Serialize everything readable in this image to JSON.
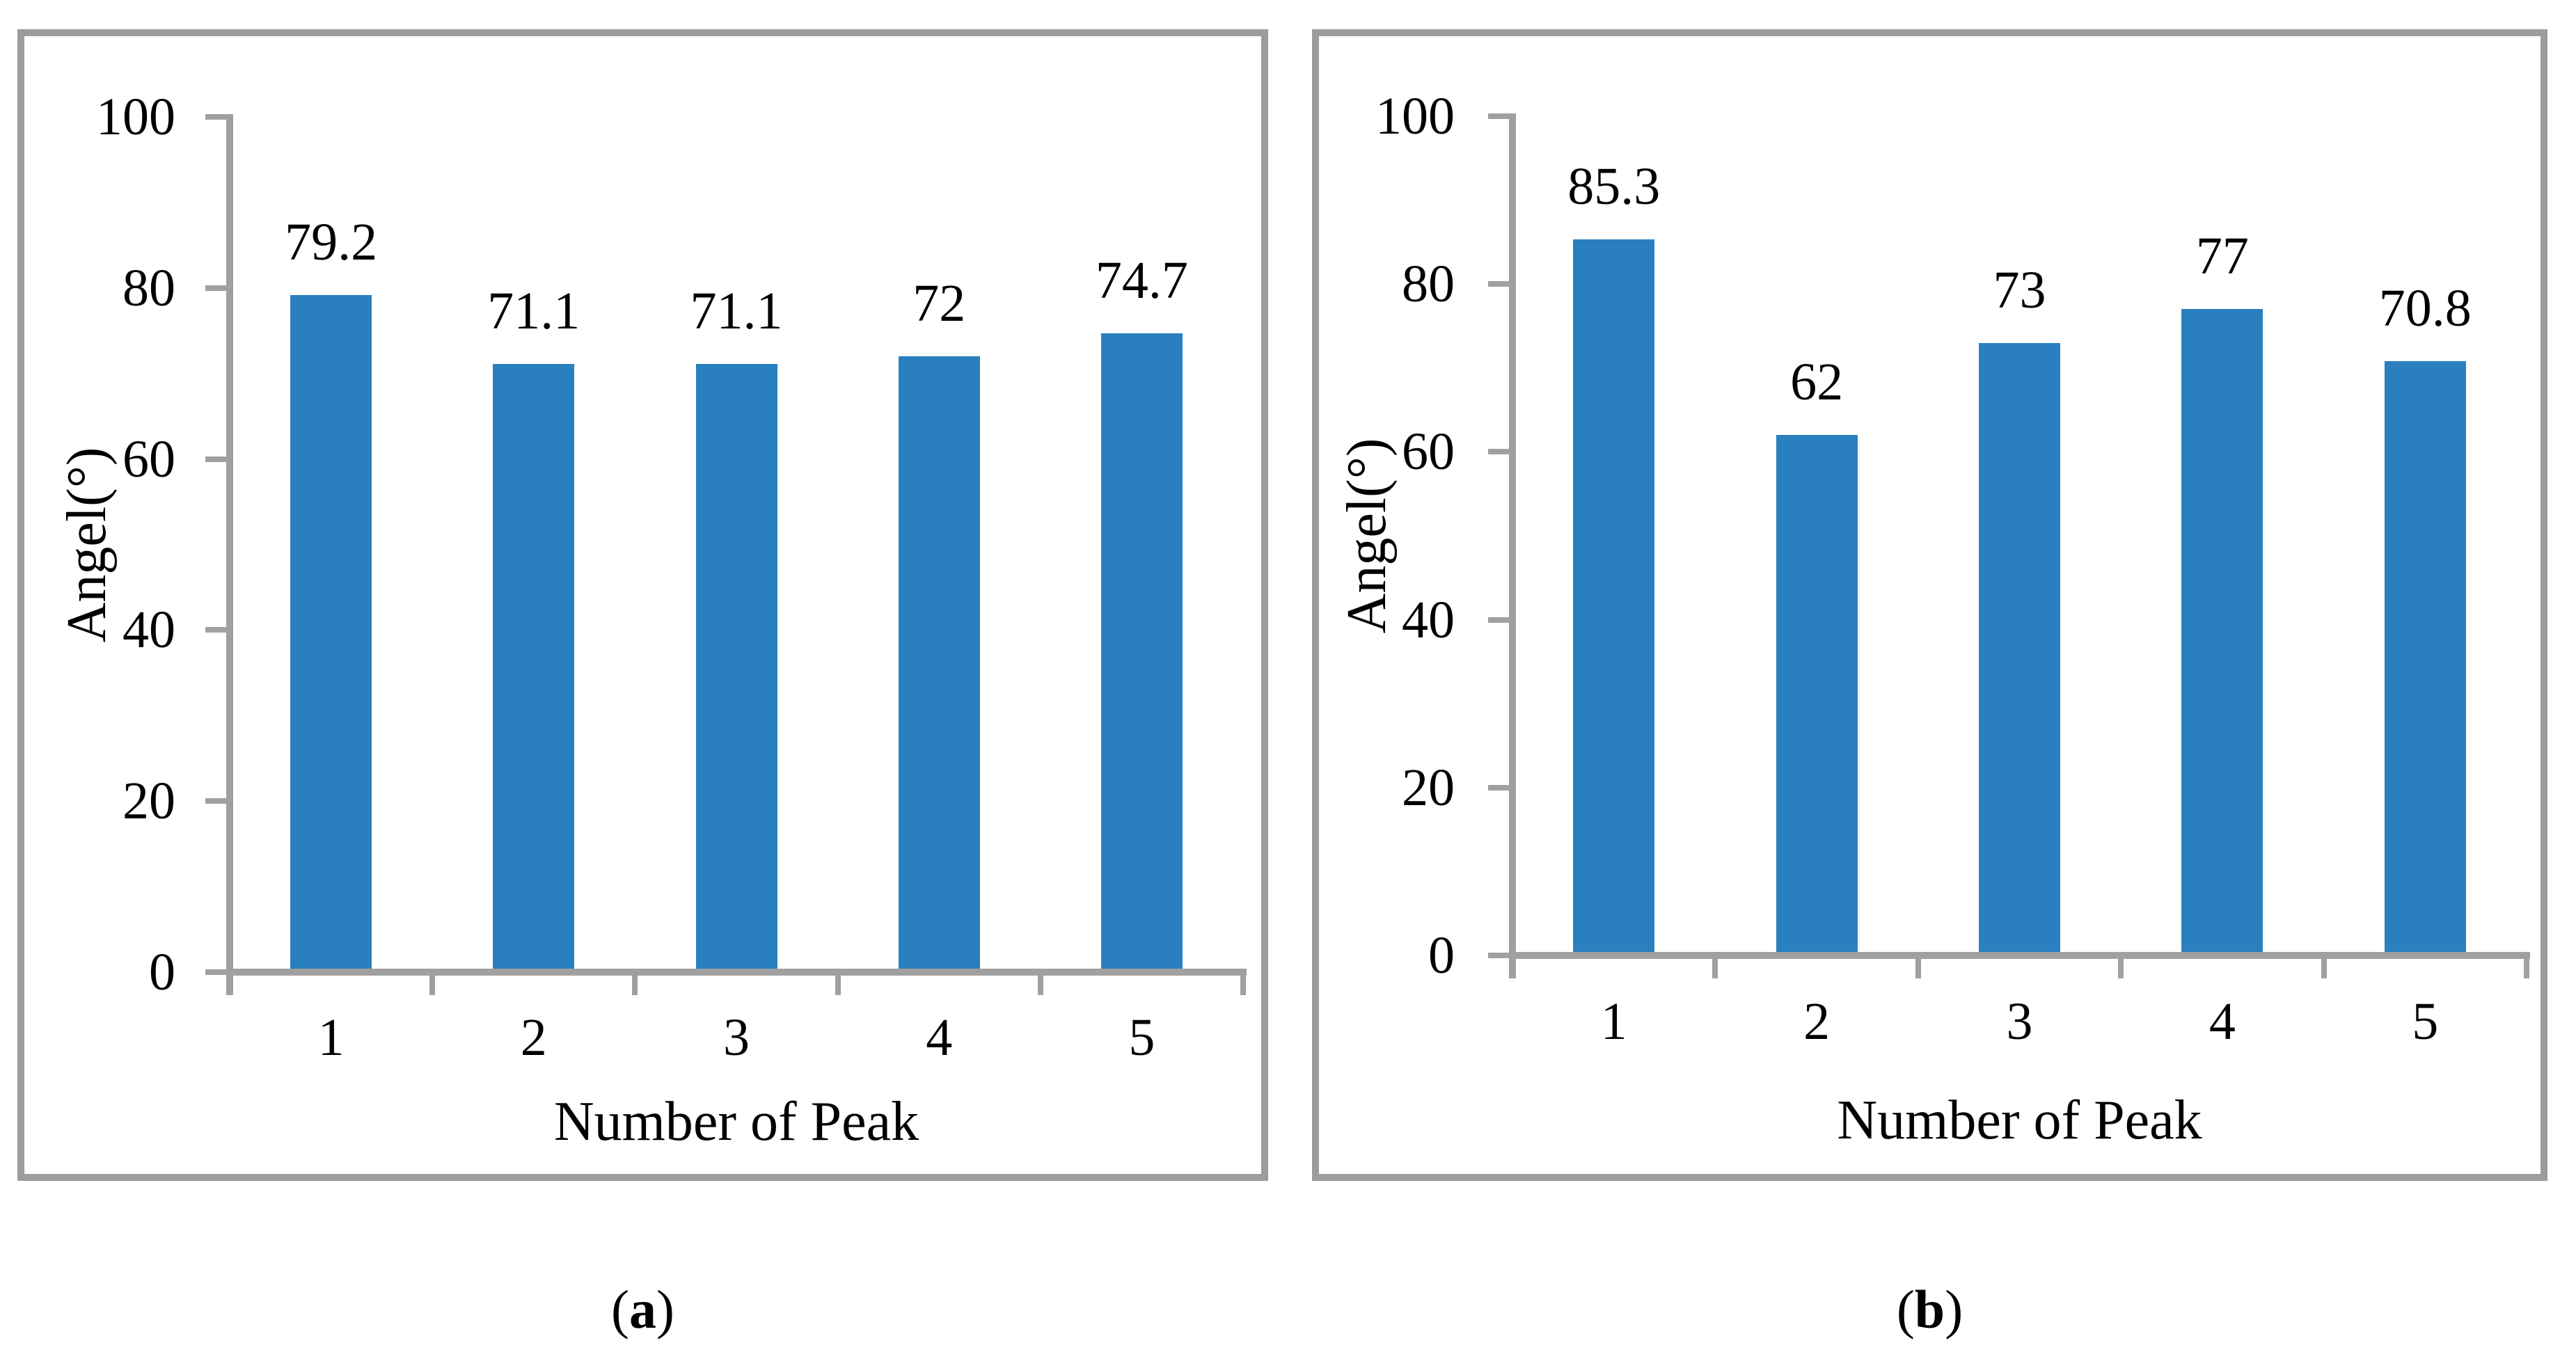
{
  "figure": {
    "description": "Two bar charts comparing angle per peak number",
    "captions": [
      "(a)",
      "(b)"
    ]
  },
  "colors": {
    "bar": "#2A80BE",
    "axis": "#A0A0A0",
    "panel_border": "#9C9C9C",
    "text": "#000000"
  },
  "chart_data": [
    {
      "type": "bar",
      "panel": "a",
      "caption": "(a)",
      "categories": [
        "1",
        "2",
        "3",
        "4",
        "5"
      ],
      "values": [
        79.2,
        71.1,
        71.1,
        72,
        74.7
      ],
      "value_labels": [
        "79.2",
        "71.1",
        "71.1",
        "72",
        "74.7"
      ],
      "xlabel": "Number of Peak",
      "ylabel": "Angel(°)",
      "ylim": [
        0,
        100
      ],
      "yticks": [
        0,
        20,
        40,
        60,
        80,
        100
      ],
      "grid": "off",
      "legend": "none"
    },
    {
      "type": "bar",
      "panel": "b",
      "caption": "(b)",
      "categories": [
        "1",
        "2",
        "3",
        "4",
        "5"
      ],
      "values": [
        85.3,
        62,
        73,
        77,
        70.8
      ],
      "value_labels": [
        "85.3",
        "62",
        "73",
        "77",
        "70.8"
      ],
      "xlabel": "Number of Peak",
      "ylabel": "Angel(°)",
      "ylim": [
        0,
        100
      ],
      "yticks": [
        0,
        20,
        40,
        60,
        80,
        100
      ],
      "grid": "off",
      "legend": "none"
    }
  ]
}
